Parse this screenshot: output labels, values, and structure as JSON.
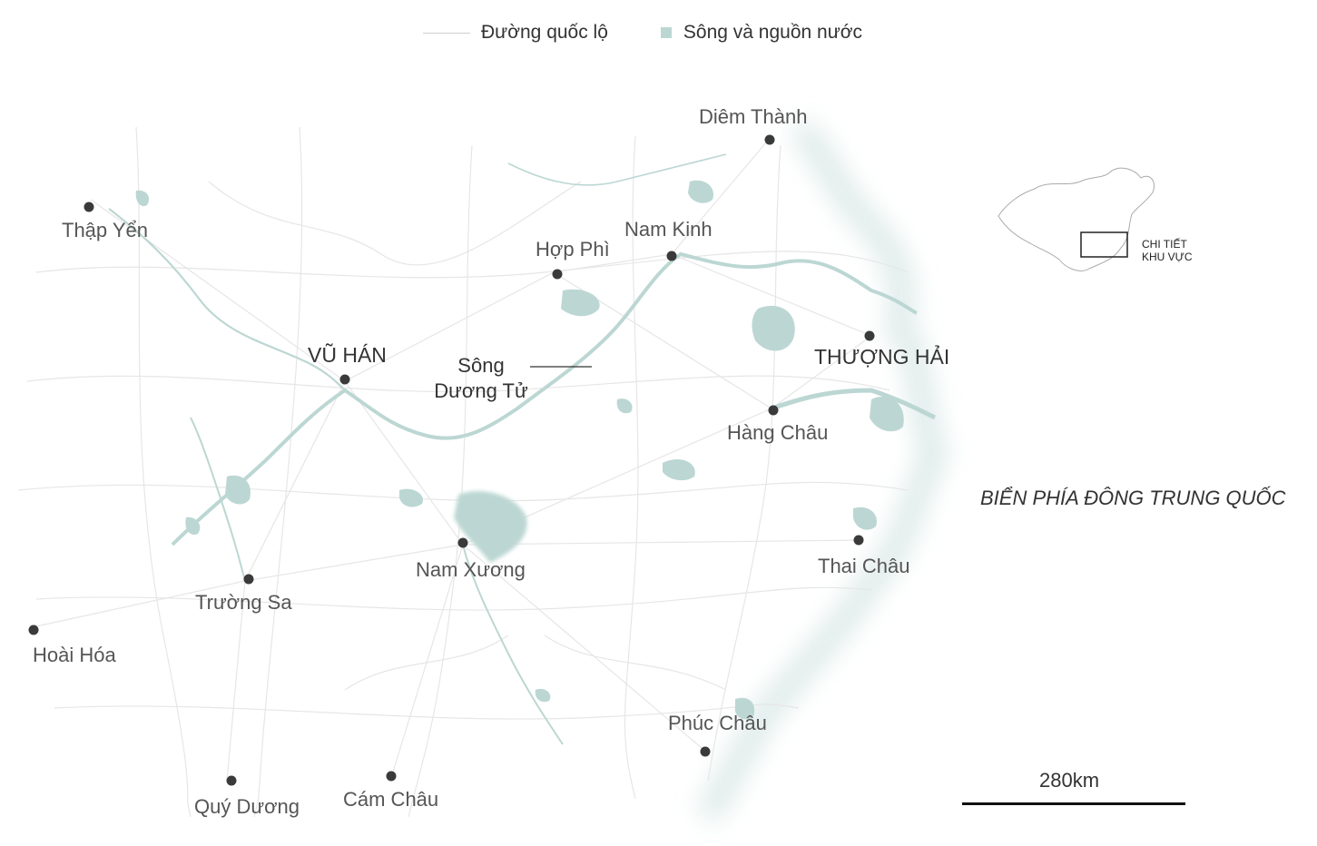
{
  "legend": {
    "road": "Đường quốc lộ",
    "water": "Sông và nguồn nước",
    "road_color": "#cfcfcf",
    "water_color": "#bcd7d3"
  },
  "colors": {
    "water": "#bcd7d3",
    "road": "#e4e4e4",
    "city_dot": "#3a3a3a"
  },
  "cities": [
    {
      "name": "Diêm Thành",
      "major": false
    },
    {
      "name": "Thập Yển",
      "major": false
    },
    {
      "name": "Nam Kinh",
      "major": false
    },
    {
      "name": "Hợp Phì",
      "major": false
    },
    {
      "name": "VŨ HÁN",
      "major": true
    },
    {
      "name": "THƯỢNG HẢI",
      "major": true
    },
    {
      "name": "Hàng Châu",
      "major": false
    },
    {
      "name": "Nam Xương",
      "major": false
    },
    {
      "name": "Thai Châu",
      "major": false
    },
    {
      "name": "Trường Sa",
      "major": false
    },
    {
      "name": "Hoài Hóa",
      "major": false
    },
    {
      "name": "Phúc Châu",
      "major": false
    },
    {
      "name": "Quý Dương",
      "major": false
    },
    {
      "name": "Cám Châu",
      "major": false
    }
  ],
  "river": {
    "line1": "Sông",
    "line2": "Dương Tử"
  },
  "sea": "BIỂN PHÍA ĐÔNG TRUNG QUỐC",
  "inset": {
    "line1": "CHI TIẾT",
    "line2": "KHU VỰC"
  },
  "scale": "280km"
}
